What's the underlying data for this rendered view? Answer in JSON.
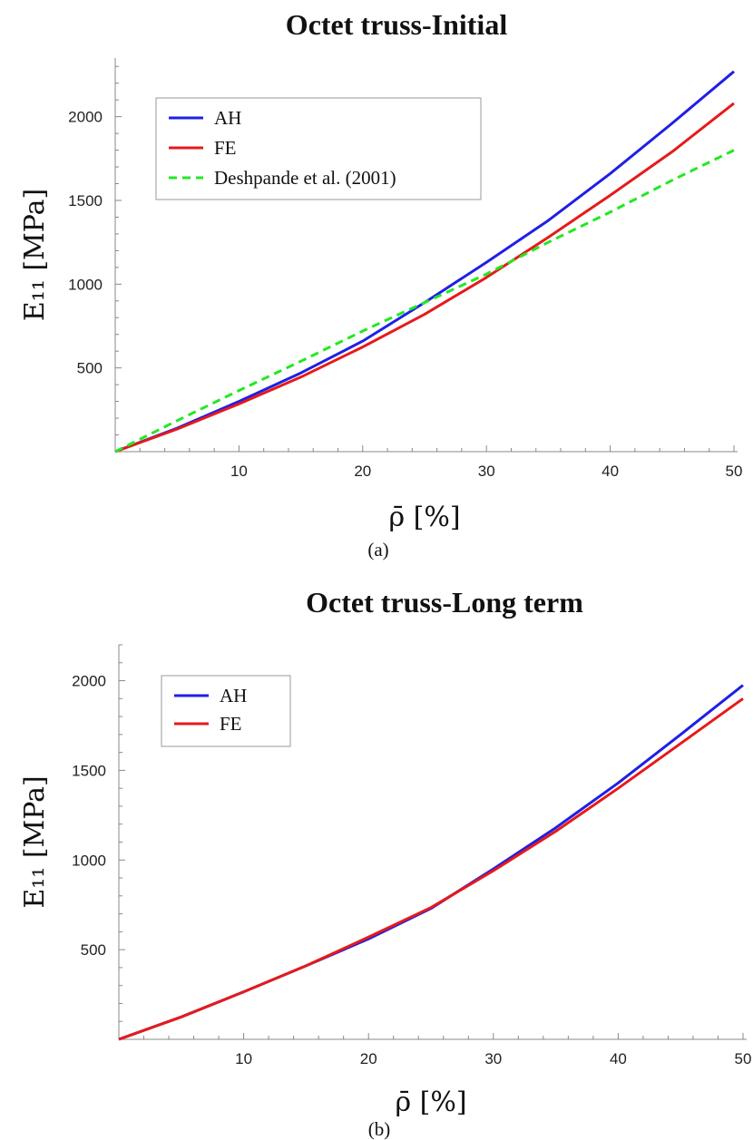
{
  "chart_data": [
    {
      "type": "line",
      "title": "Octet truss-Initial",
      "xlabel": "ρ̄ [%]",
      "ylabel": "E₁₁ [MPa]",
      "caption": "(a)",
      "xlim": [
        0,
        50
      ],
      "ylim": [
        0,
        2350
      ],
      "xticks": [
        "10",
        "20",
        "30",
        "40",
        "50"
      ],
      "yticks": [
        "500",
        "1000",
        "1500",
        "2000"
      ],
      "legend_position": "top-left",
      "series": [
        {
          "name": "AH",
          "color": "#1f1fe6",
          "style": "solid",
          "x": [
            0,
            5,
            10,
            15,
            20,
            25,
            30,
            35,
            40,
            45,
            50
          ],
          "y": [
            0,
            140,
            300,
            470,
            660,
            890,
            1130,
            1380,
            1660,
            1960,
            2270
          ]
        },
        {
          "name": "FE",
          "color": "#e61a1a",
          "style": "solid",
          "x": [
            0,
            5,
            10,
            15,
            20,
            25,
            30,
            35,
            40,
            45,
            50
          ],
          "y": [
            0,
            135,
            285,
            445,
            625,
            820,
            1040,
            1280,
            1530,
            1790,
            2080
          ]
        },
        {
          "name": "Deshpande et al. (2001)",
          "color": "#22e822",
          "style": "dashed",
          "x": [
            0,
            5,
            10,
            15,
            20,
            25,
            30,
            35,
            40,
            45,
            50
          ],
          "y": [
            0,
            185,
            365,
            540,
            720,
            890,
            1060,
            1250,
            1430,
            1620,
            1800
          ]
        }
      ]
    },
    {
      "type": "line",
      "title": "Octet truss-Long term",
      "xlabel": "ρ̄ [%]",
      "ylabel": "E₁₁ [MPa]",
      "caption": "(b)",
      "xlim": [
        0,
        50
      ],
      "ylim": [
        0,
        2200
      ],
      "xticks": [
        "10",
        "20",
        "30",
        "40",
        "50"
      ],
      "yticks": [
        "500",
        "1000",
        "1500",
        "2000"
      ],
      "legend_position": "top-left",
      "series": [
        {
          "name": "AH",
          "color": "#1f1fe6",
          "style": "solid",
          "x": [
            0,
            5,
            10,
            15,
            20,
            25,
            30,
            35,
            40,
            45,
            50
          ],
          "y": [
            0,
            125,
            265,
            410,
            560,
            730,
            950,
            1180,
            1430,
            1700,
            1975
          ]
        },
        {
          "name": "FE",
          "color": "#e61a1a",
          "style": "solid",
          "x": [
            0,
            5,
            10,
            15,
            20,
            25,
            30,
            35,
            40,
            45,
            50
          ],
          "y": [
            0,
            125,
            265,
            410,
            570,
            735,
            940,
            1160,
            1400,
            1650,
            1900
          ]
        }
      ]
    }
  ]
}
